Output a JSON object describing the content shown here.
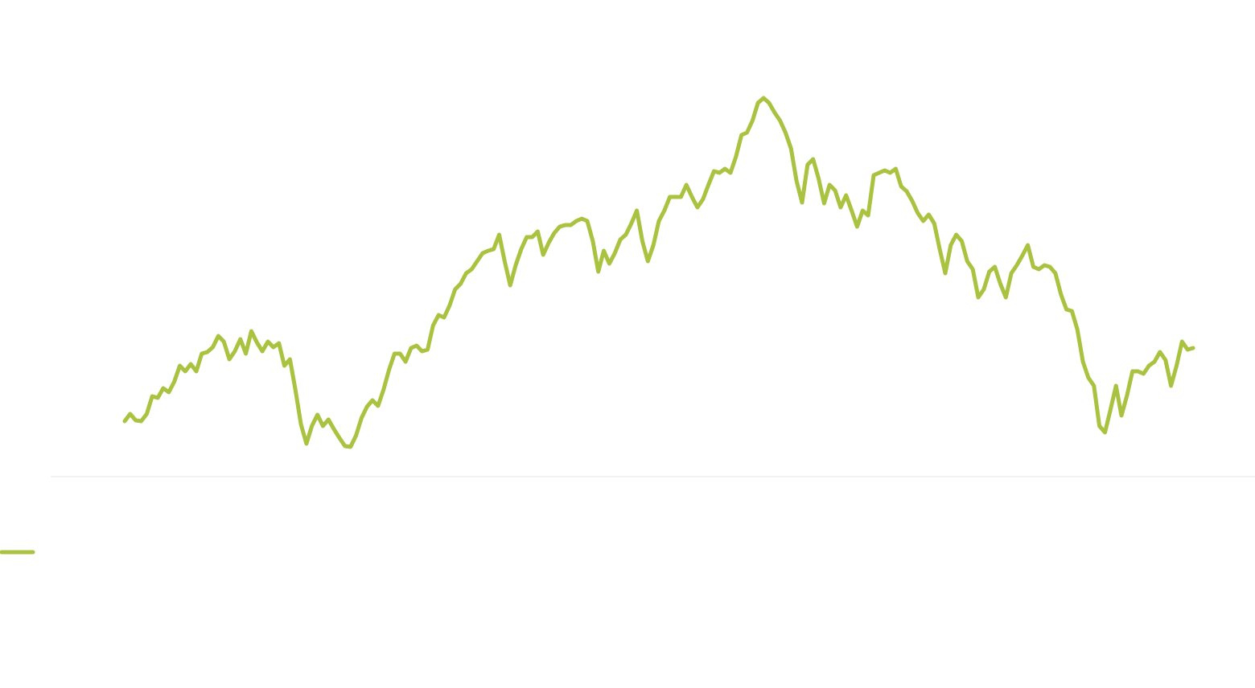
{
  "chart_data": {
    "type": "line",
    "ylim": [
      0,
      500
    ],
    "series": [
      {
        "color": "#a9c23f",
        "values": [
          69,
          78,
          70,
          69,
          78,
          100,
          98,
          110,
          105,
          118,
          138,
          131,
          140,
          131,
          153,
          155,
          161,
          175,
          168,
          146,
          156,
          171,
          153,
          181,
          167,
          156,
          168,
          161,
          166,
          138,
          146,
          108,
          65,
          41,
          63,
          77,
          63,
          71,
          59,
          48,
          38,
          37,
          51,
          73,
          87,
          95,
          88,
          108,
          133,
          153,
          153,
          143,
          160,
          163,
          156,
          158,
          188,
          201,
          198,
          213,
          233,
          240,
          253,
          258,
          268,
          278,
          281,
          283,
          301,
          268,
          238,
          263,
          283,
          298,
          298,
          305,
          276,
          291,
          303,
          311,
          313,
          313,
          318,
          321,
          318,
          293,
          255,
          281,
          265,
          278,
          295,
          301,
          315,
          331,
          293,
          268,
          288,
          318,
          331,
          348,
          348,
          348,
          363,
          348,
          335,
          345,
          363,
          380,
          378,
          383,
          378,
          398,
          425,
          428,
          443,
          465,
          471,
          465,
          453,
          443,
          428,
          408,
          368,
          341,
          388,
          395,
          371,
          340,
          363,
          356,
          335,
          350,
          331,
          311,
          331,
          325,
          375,
          378,
          381,
          378,
          383,
          361,
          355,
          343,
          328,
          318,
          326,
          315,
          283,
          253,
          288,
          301,
          293,
          268,
          258,
          223,
          233,
          255,
          261,
          240,
          223,
          253,
          263,
          275,
          288,
          261,
          258,
          263,
          261,
          253,
          227,
          208,
          206,
          183,
          143,
          123,
          113,
          63,
          55,
          83,
          113,
          76,
          101,
          131,
          131,
          128,
          138,
          143,
          155,
          145,
          113,
          138,
          168,
          158,
          160
        ]
      }
    ]
  }
}
